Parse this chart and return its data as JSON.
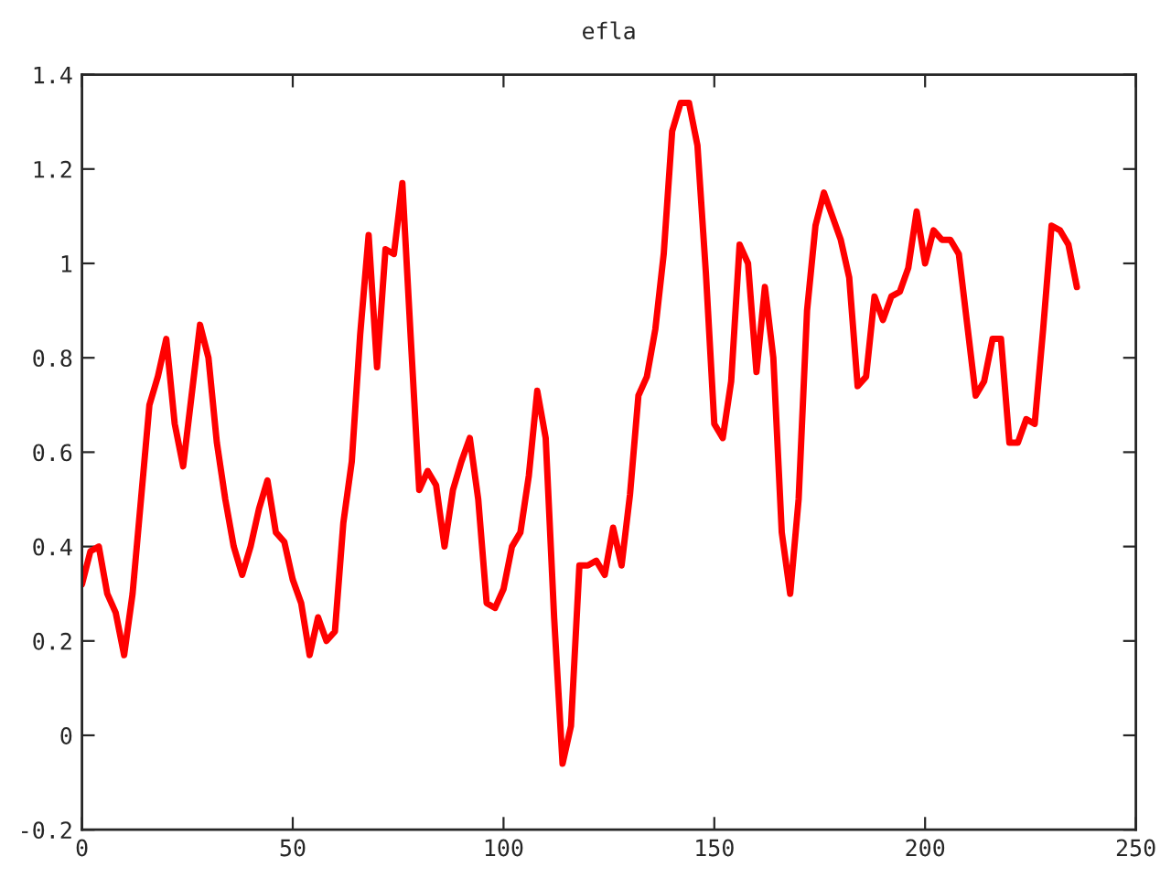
{
  "chart_data": {
    "type": "line",
    "title": "efla",
    "x": [
      0,
      2,
      4,
      6,
      8,
      10,
      12,
      14,
      16,
      18,
      20,
      22,
      24,
      26,
      28,
      30,
      32,
      34,
      36,
      38,
      40,
      42,
      44,
      46,
      48,
      50,
      52,
      54,
      56,
      58,
      60,
      62,
      64,
      66,
      68,
      70,
      72,
      74,
      76,
      78,
      80,
      82,
      84,
      86,
      88,
      90,
      92,
      94,
      96,
      98,
      100,
      102,
      104,
      106,
      108,
      110,
      112,
      114,
      116,
      118,
      120,
      122,
      124,
      126,
      128,
      130,
      132,
      134,
      136,
      138,
      140,
      142,
      144,
      146,
      148,
      150,
      152,
      154,
      156,
      158,
      160,
      162,
      164,
      166,
      168,
      170,
      172,
      174,
      176,
      178,
      180,
      182,
      184,
      186,
      188,
      190,
      192,
      194,
      196,
      198,
      200,
      202,
      204,
      206,
      208,
      210,
      212,
      214,
      216,
      218,
      220,
      222,
      224,
      226,
      228,
      230,
      232,
      234,
      236
    ],
    "series": [
      {
        "color": "#ff0000",
        "values": [
          0.32,
          0.39,
          0.4,
          0.3,
          0.26,
          0.17,
          0.3,
          0.5,
          0.7,
          0.76,
          0.84,
          0.66,
          0.57,
          0.72,
          0.87,
          0.8,
          0.62,
          0.5,
          0.4,
          0.34,
          0.4,
          0.48,
          0.54,
          0.43,
          0.41,
          0.33,
          0.28,
          0.17,
          0.25,
          0.2,
          0.22,
          0.45,
          0.58,
          0.85,
          1.06,
          0.78,
          1.03,
          1.02,
          1.17,
          0.84,
          0.52,
          0.56,
          0.53,
          0.4,
          0.52,
          0.58,
          0.63,
          0.5,
          0.28,
          0.27,
          0.31,
          0.4,
          0.43,
          0.55,
          0.73,
          0.63,
          0.25,
          -0.06,
          0.02,
          0.36,
          0.36,
          0.37,
          0.34,
          0.44,
          0.36,
          0.51,
          0.72,
          0.76,
          0.86,
          1.02,
          1.28,
          1.34,
          1.34,
          1.25,
          0.98,
          0.66,
          0.63,
          0.75,
          1.04,
          1.0,
          0.77,
          0.95,
          0.8,
          0.43,
          0.3,
          0.5,
          0.9,
          1.08,
          1.15,
          1.1,
          1.05,
          0.97,
          0.74,
          0.76,
          0.93,
          0.88,
          0.93,
          0.94,
          0.99,
          1.11,
          1.0,
          1.07,
          1.05,
          1.05,
          1.02,
          0.87,
          0.72,
          0.75,
          0.84,
          0.84,
          0.62,
          0.62,
          0.67,
          0.66,
          0.86,
          1.08,
          1.07,
          1.04,
          0.95
        ]
      }
    ],
    "xlim": [
      0,
      250
    ],
    "xticks": [
      0,
      50,
      100,
      150,
      200,
      250
    ],
    "ylim": [
      -0.2,
      1.4
    ],
    "yticks": [
      -0.2,
      0,
      0.2,
      0.4,
      0.6,
      0.8,
      1,
      1.2,
      1.4
    ],
    "grid": false,
    "legend": false,
    "marker": "none",
    "line_style": "solid"
  }
}
